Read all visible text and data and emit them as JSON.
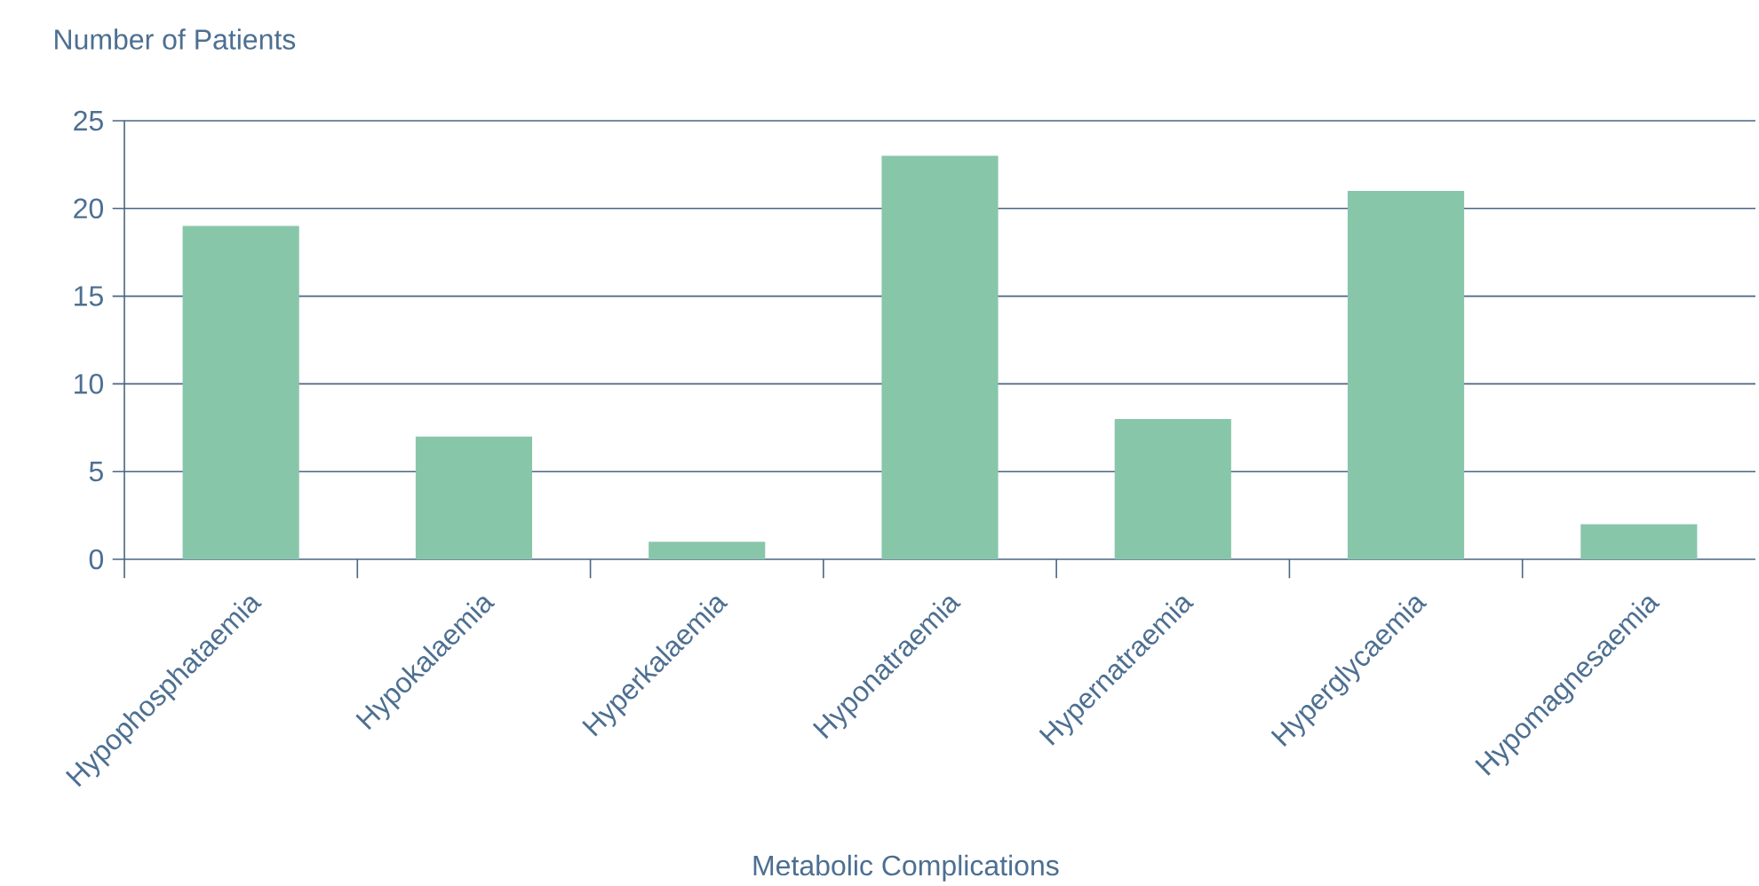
{
  "chart_data": {
    "type": "bar",
    "xlabel": "Metabolic Complications",
    "ylabel": "Number of Patients",
    "categories": [
      "Hypophosphataemia",
      "Hypokalaemia",
      "Hyperkalaemia",
      "Hyponatraemia",
      "Hypernatraemia",
      "Hyperglycaemia",
      "Hypomagnesaemia"
    ],
    "values": [
      19,
      7,
      1,
      23,
      8,
      21,
      2
    ],
    "color": "#88c6aa",
    "ylim": [
      0,
      25
    ],
    "yticks": [
      0,
      5,
      10,
      15,
      20,
      25
    ],
    "grid": "y"
  }
}
